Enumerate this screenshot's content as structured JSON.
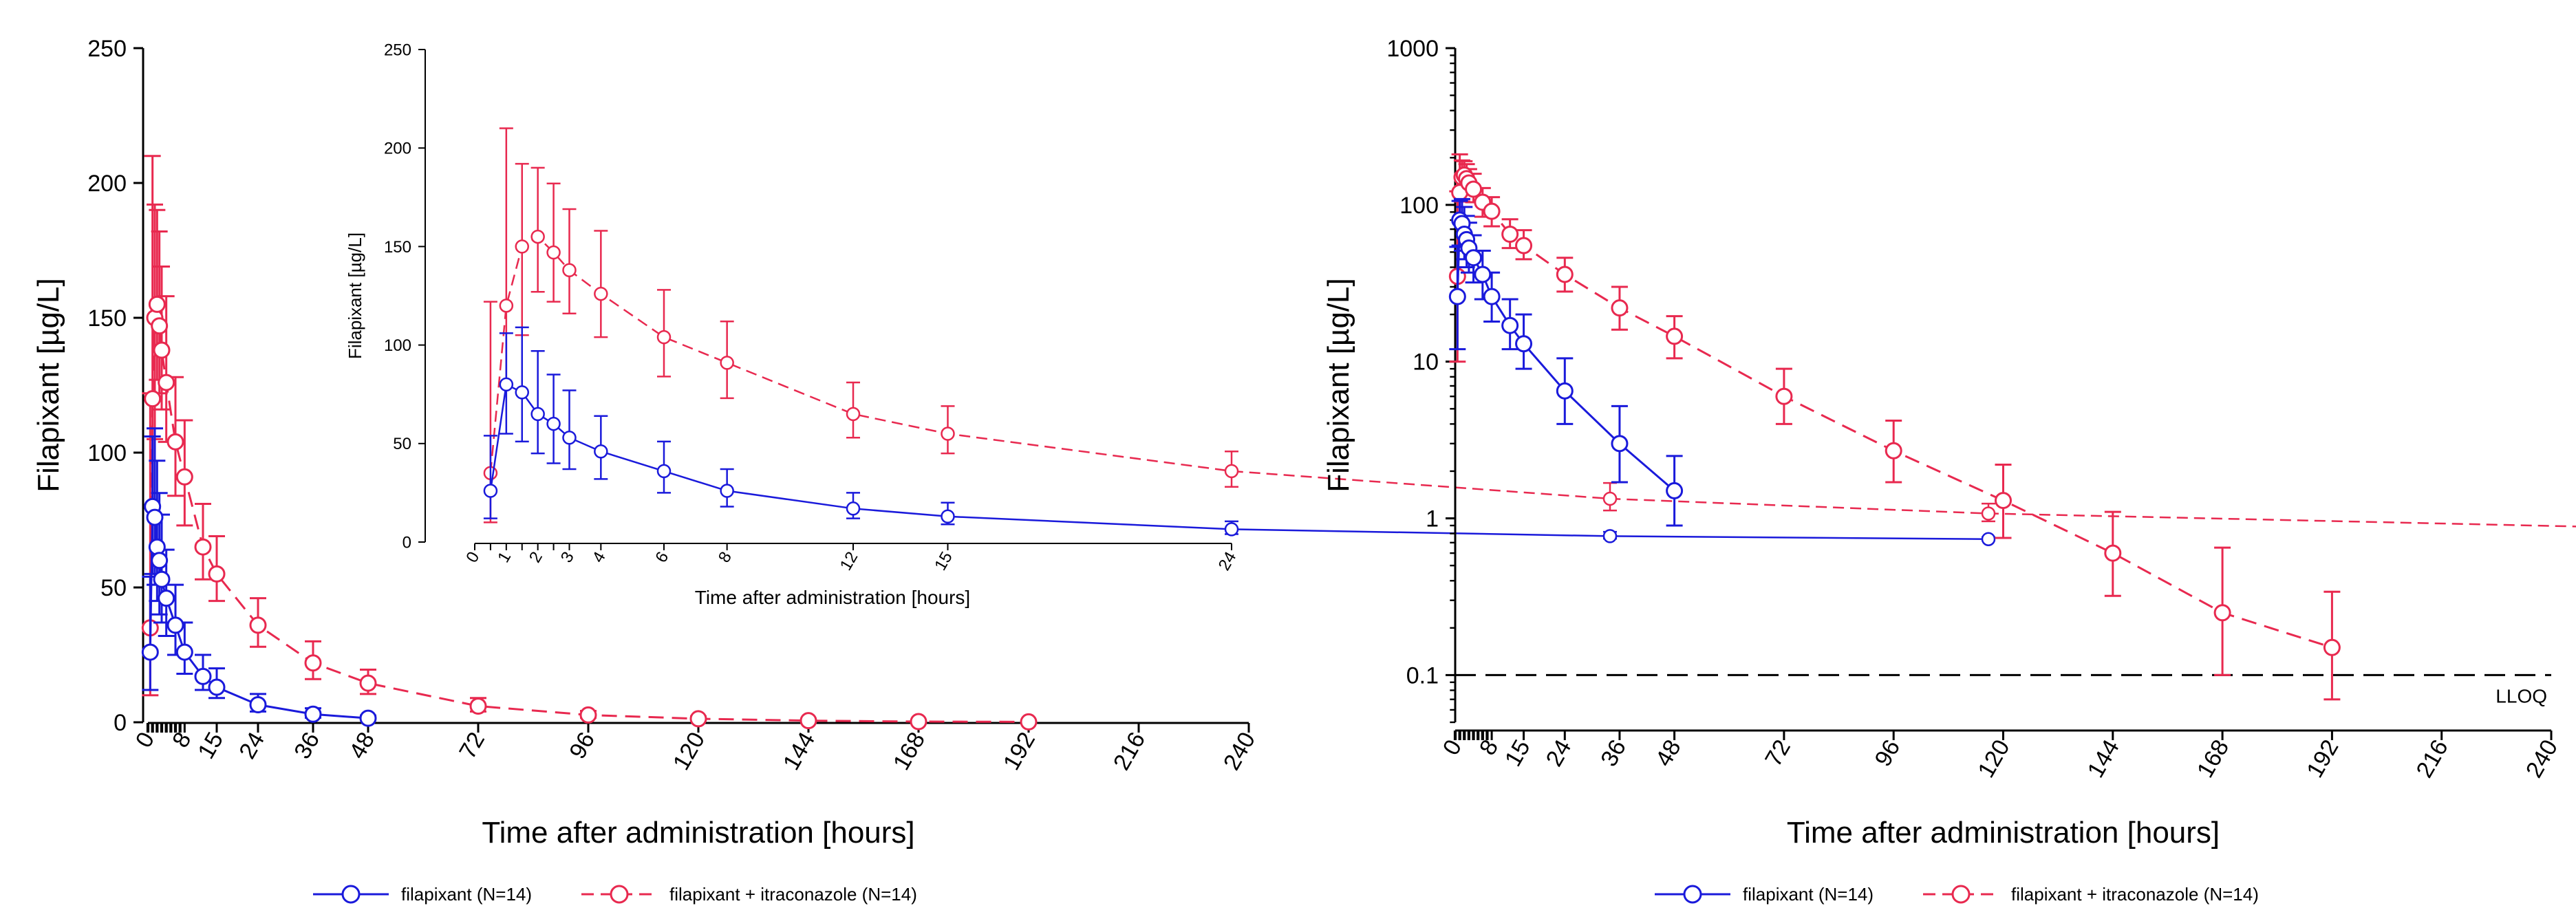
{
  "colors": {
    "series_a": "#1a1adb",
    "series_b": "#e8294f",
    "axis": "#000000",
    "lloq": "#000000"
  },
  "legend": {
    "series_a_label": "filapixant (N=14)",
    "series_b_label": "filapixant + itraconazole (N=14)"
  },
  "chart_data": [
    {
      "id": "linear_main",
      "type": "line",
      "title": "",
      "xlabel": "Time after administration [hours]",
      "ylabel": "Filapixant [µg/L]",
      "xlim": [
        0,
        240
      ],
      "ylim": [
        0,
        250
      ],
      "xticks": [
        0,
        8,
        15,
        24,
        36,
        48,
        72,
        96,
        120,
        144,
        168,
        192,
        216,
        240
      ],
      "yticks": [
        0,
        50,
        100,
        150,
        200,
        250
      ],
      "legend_position": "bottom",
      "series": [
        {
          "name": "filapixant (N=14)",
          "x": [
            0.5,
            1,
            1.5,
            2,
            2.5,
            3,
            4,
            6,
            8,
            12,
            15,
            24,
            36,
            48
          ],
          "y": [
            26,
            80,
            76,
            65,
            60,
            53,
            46,
            36,
            26,
            17,
            13,
            6.5,
            3,
            1.5
          ],
          "err_low": [
            14,
            25,
            25,
            20,
            20,
            16,
            14,
            11,
            8,
            5,
            4,
            2.5,
            1.3,
            0.6
          ],
          "err_high": [
            28,
            26,
            33,
            32,
            25,
            24,
            18,
            15,
            11,
            8,
            7,
            4,
            2.2,
            1
          ]
        },
        {
          "name": "filapixant + itraconazole (N=14)",
          "x": [
            0.5,
            1,
            1.5,
            2,
            2.5,
            3,
            4,
            6,
            8,
            12,
            15,
            24,
            36,
            48,
            72,
            96,
            120,
            144,
            168,
            192
          ],
          "y": [
            35,
            120,
            150,
            155,
            147,
            138,
            126,
            104,
            91,
            65,
            55,
            36,
            22,
            14.5,
            6,
            2.7,
            1.3,
            0.6,
            0.25,
            0.15
          ],
          "err_low": [
            25,
            40,
            45,
            28,
            25,
            22,
            22,
            20,
            18,
            12,
            10,
            8,
            6,
            4,
            2,
            1,
            0.55,
            0.28,
            0.15,
            0.08
          ],
          "err_high": [
            87,
            90,
            42,
            35,
            35,
            31,
            32,
            24,
            21,
            16,
            14,
            10,
            8,
            5,
            3,
            1.5,
            0.9,
            0.5,
            0.4,
            0.19
          ]
        }
      ]
    },
    {
      "id": "linear_inset",
      "type": "line",
      "xlabel": "Time after administration [hours]",
      "ylabel": "Filapixant [µg/L]",
      "xlim": [
        0,
        24
      ],
      "ylim": [
        0,
        250
      ],
      "xticks": [
        0,
        0.5,
        1,
        1.5,
        2,
        2.5,
        3,
        4,
        6,
        8,
        12,
        15,
        24
      ],
      "xtick_labels": [
        "0",
        "",
        "1",
        "",
        "2",
        "",
        "3",
        "4",
        "6",
        "8",
        "12",
        "15",
        "24"
      ],
      "yticks": [
        0,
        50,
        100,
        150,
        200,
        250
      ],
      "series_ref": [
        "filapixant (N=14)",
        "filapixant + itraconazole (N=14)"
      ]
    },
    {
      "id": "log_main",
      "type": "line",
      "xlabel": "Time after administration [hours]",
      "ylabel": "Filapixant [µg/L]",
      "yscale": "log",
      "xlim": [
        0,
        240
      ],
      "ylim": [
        0.05,
        1000
      ],
      "xticks": [
        0,
        8,
        15,
        24,
        36,
        48,
        72,
        96,
        120,
        144,
        168,
        192,
        216,
        240
      ],
      "yticks": [
        0.1,
        1,
        10,
        100,
        1000
      ],
      "ytick_labels": [
        "0.1",
        "1",
        "10",
        "100",
        "1000"
      ],
      "reference_line": {
        "y": 0.1,
        "label": "LLOQ"
      },
      "series_ref": [
        "filapixant (N=14)",
        "filapixant + itraconazole (N=14)"
      ]
    }
  ]
}
